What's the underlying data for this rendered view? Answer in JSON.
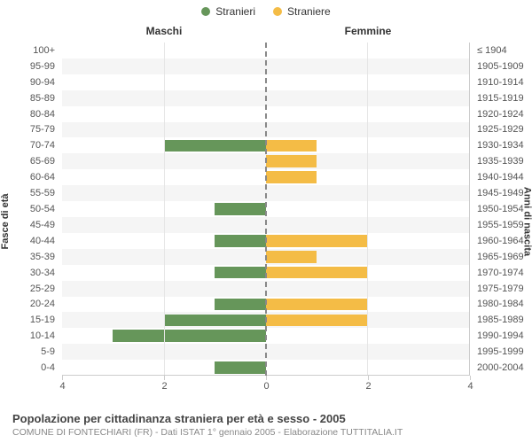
{
  "legend": {
    "m": {
      "label": "Stranieri",
      "color": "#66965a"
    },
    "f": {
      "label": "Straniere",
      "color": "#f4bc46"
    }
  },
  "column_headers": {
    "left": "Maschi",
    "right": "Femmine"
  },
  "y_axis_left_title": "Fasce di età",
  "y_axis_right_title": "Anni di nascita",
  "x_axis": {
    "max": 4,
    "ticks": [
      4,
      2,
      0,
      2,
      4
    ]
  },
  "alt_row_bg": "#f5f5f5",
  "center_dash_color": "#808080",
  "grid_color": "#e6e6e6",
  "rows": [
    {
      "age": "100+",
      "birth": "≤ 1904",
      "m": 0,
      "f": 0
    },
    {
      "age": "95-99",
      "birth": "1905-1909",
      "m": 0,
      "f": 0
    },
    {
      "age": "90-94",
      "birth": "1910-1914",
      "m": 0,
      "f": 0
    },
    {
      "age": "85-89",
      "birth": "1915-1919",
      "m": 0,
      "f": 0
    },
    {
      "age": "80-84",
      "birth": "1920-1924",
      "m": 0,
      "f": 0
    },
    {
      "age": "75-79",
      "birth": "1925-1929",
      "m": 0,
      "f": 0
    },
    {
      "age": "70-74",
      "birth": "1930-1934",
      "m": 2,
      "f": 1
    },
    {
      "age": "65-69",
      "birth": "1935-1939",
      "m": 0,
      "f": 1
    },
    {
      "age": "60-64",
      "birth": "1940-1944",
      "m": 0,
      "f": 1
    },
    {
      "age": "55-59",
      "birth": "1945-1949",
      "m": 0,
      "f": 0
    },
    {
      "age": "50-54",
      "birth": "1950-1954",
      "m": 1,
      "f": 0
    },
    {
      "age": "45-49",
      "birth": "1955-1959",
      "m": 0,
      "f": 0
    },
    {
      "age": "40-44",
      "birth": "1960-1964",
      "m": 1,
      "f": 2
    },
    {
      "age": "35-39",
      "birth": "1965-1969",
      "m": 0,
      "f": 1
    },
    {
      "age": "30-34",
      "birth": "1970-1974",
      "m": 1,
      "f": 2
    },
    {
      "age": "25-29",
      "birth": "1975-1979",
      "m": 0,
      "f": 0
    },
    {
      "age": "20-24",
      "birth": "1980-1984",
      "m": 1,
      "f": 2
    },
    {
      "age": "15-19",
      "birth": "1985-1989",
      "m": 2,
      "f": 2
    },
    {
      "age": "10-14",
      "birth": "1990-1994",
      "m": 3,
      "f": 0
    },
    {
      "age": "5-9",
      "birth": "1995-1999",
      "m": 0,
      "f": 0
    },
    {
      "age": "0-4",
      "birth": "2000-2004",
      "m": 1,
      "f": 0
    }
  ],
  "footer": {
    "title": "Popolazione per cittadinanza straniera per età e sesso - 2005",
    "subtitle": "COMUNE DI FONTECHIARI (FR) - Dati ISTAT 1° gennaio 2005 - Elaborazione TUTTITALIA.IT"
  }
}
